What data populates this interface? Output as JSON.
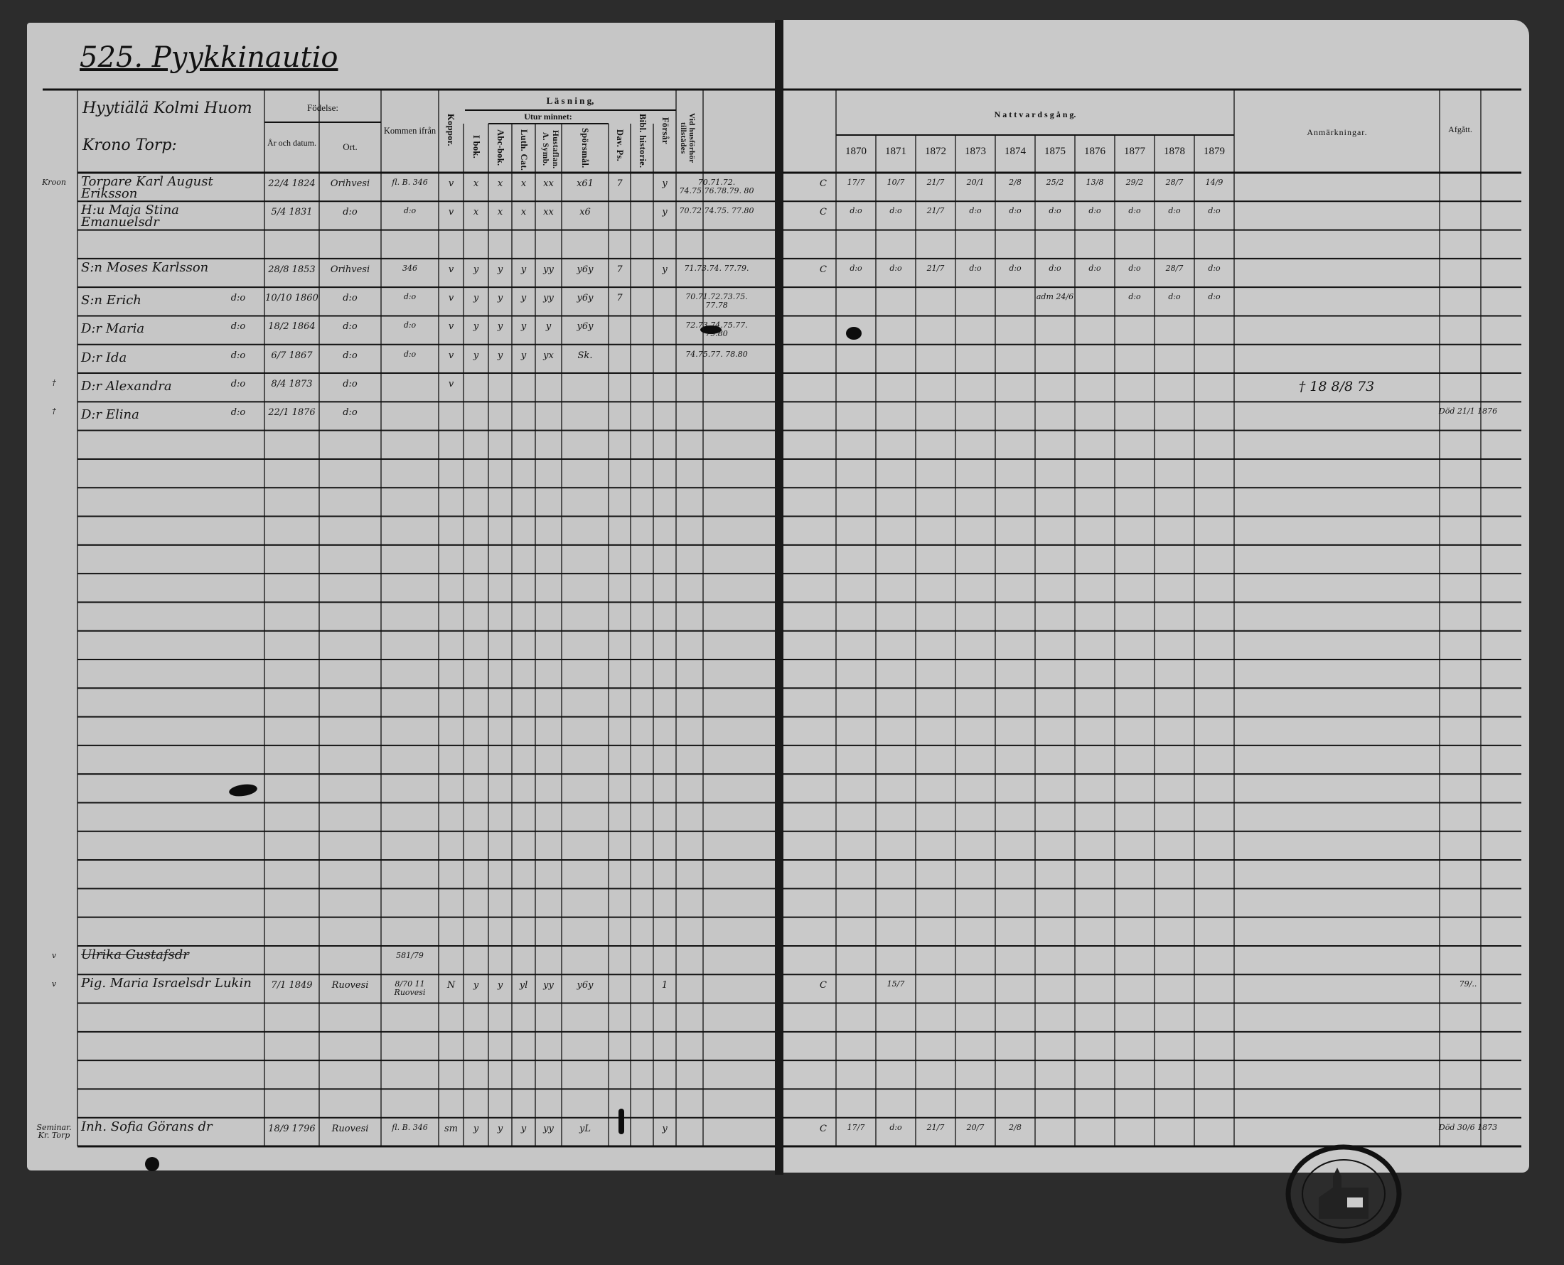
{
  "page_title": "525. Pyykkinautio",
  "header": {
    "village": "Hyytiälä Kolmi Huom",
    "farm": "Krono Torp:",
    "fodelse": "Födelse:",
    "ar_och_datum": "År och datum.",
    "ort": "Ort.",
    "kommen_ifran": "Kommen ifrån",
    "koppor": "Koppor.",
    "lasning": "L ä s n i n g,",
    "utur_minnet": "Utur minnet:",
    "i_bok": "I bok.",
    "abc_bok": "Abc-bok.",
    "luth_cat": "Luth. Cat.",
    "hustaflan": "Hustaflan. A. Symb.",
    "sporsmal": "Spörsmål.",
    "dav_ps": "Dav. Ps.",
    "bibl_historie": "Bibl. historie.",
    "forsar": "Försår",
    "vid_husforhor": "Vid husförhör tillstädes",
    "nattvardsgang": "N a t t v a r d s g å n g.",
    "years": [
      "1870",
      "1871",
      "1872",
      "1873",
      "1874",
      "1875",
      "1876",
      "1877",
      "1878",
      "1879"
    ],
    "anmarkningar": "Anmärkningar.",
    "afgatt": "Afgått."
  },
  "rows": [
    {
      "row": 0,
      "m": "Kroon",
      "n": "Torpare Karl August Eriksson",
      "b": "22/4 1824",
      "o": "Orihvesi",
      "f": "fl. B. 346",
      "k": "v",
      "r": [
        "x",
        "x",
        "x",
        "xx",
        "x61",
        "7",
        "",
        "y"
      ],
      "v": "70.71.72. 74.75.76.78.79. 80",
      "rm": "C",
      "nv": [
        "17/7",
        "10/7",
        "21/7",
        "20/1",
        "2/8",
        "25/2",
        "13/8",
        "29/2",
        "28/7",
        "14/9"
      ]
    },
    {
      "row": 1,
      "n": "H:u Maja Stina Emanuelsdr",
      "b": "5/4 1831",
      "o": "d:o",
      "f": "d:o",
      "k": "v",
      "r": [
        "x",
        "x",
        "x",
        "xx",
        "x6",
        "",
        "",
        "y"
      ],
      "v": "70.72.74.75. 77.80",
      "rm": "C",
      "nv": [
        "d:o",
        "d:o",
        "21/7",
        "d:o",
        "d:o",
        "d:o",
        "d:o",
        "d:o",
        "d:o",
        "d:o"
      ]
    },
    {
      "row": 3,
      "n": "S:n Moses Karlsson",
      "b": "28/8 1853",
      "o": "Orihvesi",
      "f": "346",
      "k": "v",
      "r": [
        "y",
        "y",
        "y",
        "yy",
        "y6y",
        "7",
        "",
        "y"
      ],
      "v": "71.73.74. 77.79.",
      "rm": "C",
      "nv": [
        "d:o",
        "d:o",
        "21/7",
        "d:o",
        "d:o",
        "d:o",
        "d:o",
        "d:o",
        "28/7",
        "d:o"
      ]
    },
    {
      "row": 4,
      "n": "S:n Erich",
      "d": "d:o",
      "b": "10/10 1860",
      "o": "d:o",
      "f": "d:o",
      "k": "v",
      "r": [
        "y",
        "y",
        "y",
        "yy",
        "y6y",
        "7",
        "",
        ""
      ],
      "v": "70.71.72.73.75. 77.78",
      "nv": [
        "",
        "",
        "",
        "",
        "",
        "adm 24/6",
        "",
        "d:o",
        "d:o",
        "d:o"
      ]
    },
    {
      "row": 5,
      "n": "D:r Maria",
      "d": "d:o",
      "b": "18/2 1864",
      "o": "d:o",
      "f": "d:o",
      "k": "v",
      "r": [
        "y",
        "y",
        "y",
        "y",
        "y6y",
        "",
        "",
        ""
      ],
      "v": "72.73.74.75.77. 79.80"
    },
    {
      "row": 6,
      "n": "D:r Ida",
      "d": "d:o",
      "b": "6/7 1867",
      "o": "d:o",
      "f": "d:o",
      "k": "v",
      "r": [
        "y",
        "y",
        "y",
        "yx",
        "Sk.",
        "",
        "",
        ""
      ],
      "v": "74.75.77. 78.80"
    },
    {
      "row": 7,
      "m": "†",
      "n": "D:r Alexandra",
      "d": "d:o",
      "b": "8/4 1873",
      "o": "d:o",
      "k": "v",
      "an": "† 18 8/8 73"
    },
    {
      "row": 8,
      "m": "†",
      "n": "D:r Elina",
      "d": "d:o",
      "b": "22/1 1876",
      "o": "d:o",
      "af": "Död 21/1 1876"
    },
    {
      "row": 27,
      "m": "v",
      "n": "Ulrika Gustafsdr",
      "f": "581/79"
    },
    {
      "row": 28,
      "m": "v",
      "n": "Pig. Maria Israelsdr Lukin",
      "b": "7/1 1849",
      "o": "Ruovesi",
      "f": "8/70 11 Ruovesi",
      "k": "N",
      "r": [
        "y",
        "y",
        "yl",
        "yy",
        "y6y",
        "",
        "",
        "1"
      ],
      "rm": "C",
      "nv": [
        "",
        "15/7",
        "",
        "",
        "",
        "",
        "",
        "",
        "",
        ""
      ],
      "af": "79/.."
    },
    {
      "row": 33,
      "m": "Seminar. Kr. Torp",
      "n": "Inh. Sofia Görans dr",
      "b": "18/9 1796",
      "o": "Ruovesi",
      "f": "fl. B. 346",
      "k": "sm",
      "r": [
        "y",
        "y",
        "y",
        "yy",
        "yL",
        "",
        "",
        "y"
      ],
      "rm": "C",
      "nv": [
        "17/7",
        "d:o",
        "21/7",
        "20/7",
        "2/8",
        "",
        "",
        "",
        "",
        ""
      ],
      "af": "Död 30/6 1873"
    }
  ]
}
